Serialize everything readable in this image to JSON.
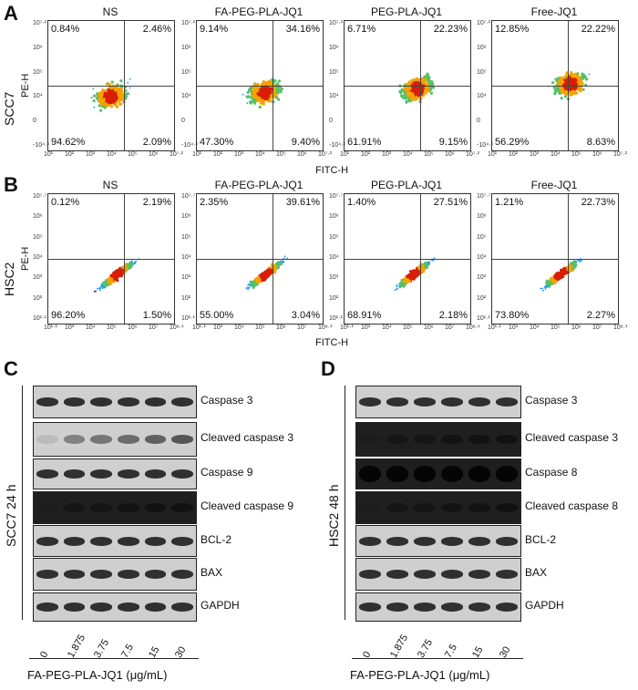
{
  "panel_letters": {
    "a": "A",
    "b": "B",
    "c": "C",
    "d": "D"
  },
  "flow_a": {
    "row_label": "SCC7",
    "x_axis_label": "FITC-H",
    "y_axis_label": "PE-H",
    "x_ticks": [
      "10¹",
      "10²",
      "10³",
      "10⁴",
      "10⁵",
      "10⁶",
      "10⁷·²"
    ],
    "y_ticks": [
      "10⁷·²",
      "10⁶",
      "10⁵",
      "10⁴",
      "0",
      "-10⁴·²"
    ],
    "plots": [
      {
        "title": "NS",
        "ul": "0.84%",
        "ur": "2.46%",
        "ll": "94.62%",
        "lr": "2.09%"
      },
      {
        "title": "FA-PEG-PLA-JQ1",
        "ul": "9.14%",
        "ur": "34.16%",
        "ll": "47.30%",
        "lr": "9.40%"
      },
      {
        "title": "PEG-PLA-JQ1",
        "ul": "6.71%",
        "ur": "22.23%",
        "ll": "61.91%",
        "lr": "9.15%"
      },
      {
        "title": "Free-JQ1",
        "ul": "12.85%",
        "ur": "22.22%",
        "ll": "56.29%",
        "lr": "8.63%"
      }
    ]
  },
  "flow_b": {
    "row_label": "HSC2",
    "x_axis_label": "FITC-H",
    "y_axis_label": "PE-H",
    "x_ticks": [
      "10¹·¹",
      "10³",
      "10⁴",
      "10⁵",
      "10⁶",
      "10⁷",
      "10⁸·¹"
    ],
    "y_ticks": [
      "10⁷·⁷",
      "10⁶",
      "10⁵",
      "10⁴",
      "10³",
      "10²",
      "10¹·¹"
    ],
    "plots": [
      {
        "title": "NS",
        "ul": "0.12%",
        "ur": "2.19%",
        "ll": "96.20%",
        "lr": "1.50%"
      },
      {
        "title": "FA-PEG-PLA-JQ1",
        "ul": "2.35%",
        "ur": "39.61%",
        "ll": "55.00%",
        "lr": "3.04%"
      },
      {
        "title": "PEG-PLA-JQ1",
        "ul": "1.40%",
        "ur": "27.51%",
        "ll": "68.91%",
        "lr": "2.18%"
      },
      {
        "title": "Free-JQ1",
        "ul": "1.21%",
        "ur": "22.73%",
        "ll": "73.80%",
        "lr": "2.27%"
      }
    ]
  },
  "blot_c": {
    "row_label": "SCC7 24 h",
    "labels": [
      "Caspase 3",
      "Cleaved caspase 3",
      "Caspase 9",
      "Cleaved caspase 9",
      "BCL-2",
      "BAX",
      "GAPDH"
    ],
    "lanes": [
      "0",
      "1.875",
      "3.75",
      "7.5",
      "15",
      "30"
    ],
    "x_title": "FA-PEG-PLA-JQ1 (μg/mL)"
  },
  "blot_d": {
    "row_label": "HSC2 48 h",
    "labels": [
      "Caspase 3",
      "Cleaved caspase 3",
      "Caspase 8",
      "Cleaved caspase 8",
      "BCL-2",
      "BAX",
      "GAPDH"
    ],
    "lanes": [
      "0",
      "1.875",
      "3.75",
      "7.5",
      "15",
      "30"
    ],
    "x_title": "FA-PEG-PLA-JQ1 (μg/mL)"
  }
}
